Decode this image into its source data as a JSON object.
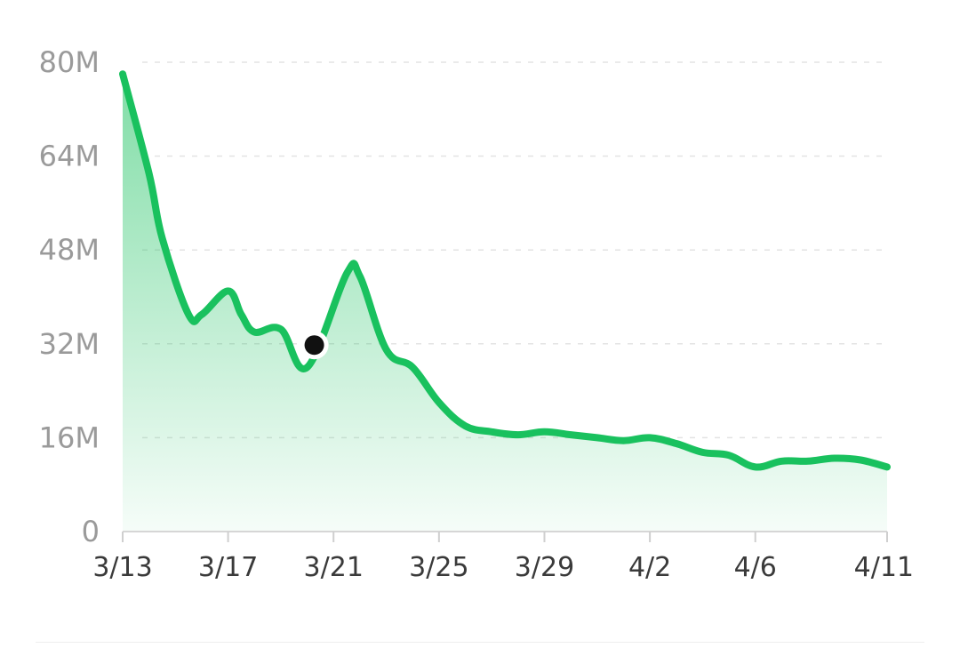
{
  "chart_data": {
    "type": "area",
    "title": "",
    "xlabel": "",
    "ylabel": "",
    "ylim": [
      0,
      80000000
    ],
    "yticks": [
      {
        "value": 0,
        "label": "0"
      },
      {
        "value": 16000000,
        "label": "16M"
      },
      {
        "value": 32000000,
        "label": "32M"
      },
      {
        "value": 48000000,
        "label": "48M"
      },
      {
        "value": 64000000,
        "label": "64M"
      },
      {
        "value": 80000000,
        "label": "80M"
      }
    ],
    "xticks": [
      {
        "day": 0,
        "label": "3/13"
      },
      {
        "day": 4,
        "label": "3/17"
      },
      {
        "day": 8,
        "label": "3/21"
      },
      {
        "day": 12,
        "label": "3/25"
      },
      {
        "day": 16,
        "label": "3/29"
      },
      {
        "day": 20,
        "label": "4/2"
      },
      {
        "day": 24,
        "label": "4/6"
      },
      {
        "day": 29,
        "label": "4/11"
      }
    ],
    "grid": true,
    "color": "#19c15e",
    "highlight_index": 9,
    "points": [
      {
        "day": 0,
        "value": 78000000
      },
      {
        "day": 1,
        "value": 61000000
      },
      {
        "day": 1.5,
        "value": 50000000
      },
      {
        "day": 2.5,
        "value": 37000000
      },
      {
        "day": 3,
        "value": 37000000
      },
      {
        "day": 4,
        "value": 41000000
      },
      {
        "day": 4.5,
        "value": 37000000
      },
      {
        "day": 5,
        "value": 34000000
      },
      {
        "day": 6,
        "value": 34500000
      },
      {
        "day": 7.0,
        "value": 28000000
      },
      {
        "day": 8.5,
        "value": 44000000
      },
      {
        "day": 9.0,
        "value": 43500000
      },
      {
        "day": 10.0,
        "value": 31000000
      },
      {
        "day": 11.0,
        "value": 28000000
      },
      {
        "day": 12,
        "value": 22000000
      },
      {
        "day": 13,
        "value": 18000000
      },
      {
        "day": 14,
        "value": 17000000
      },
      {
        "day": 15,
        "value": 16500000
      },
      {
        "day": 16,
        "value": 17000000
      },
      {
        "day": 17,
        "value": 16500000
      },
      {
        "day": 18,
        "value": 16000000
      },
      {
        "day": 19,
        "value": 15500000
      },
      {
        "day": 20,
        "value": 16000000
      },
      {
        "day": 21,
        "value": 15000000
      },
      {
        "day": 22,
        "value": 13500000
      },
      {
        "day": 23,
        "value": 13000000
      },
      {
        "day": 24,
        "value": 11000000
      },
      {
        "day": 25,
        "value": 12000000
      },
      {
        "day": 26,
        "value": 12000000
      },
      {
        "day": 27,
        "value": 12500000
      },
      {
        "day": 28,
        "value": 12200000
      },
      {
        "day": 29,
        "value": 11000000
      }
    ]
  }
}
